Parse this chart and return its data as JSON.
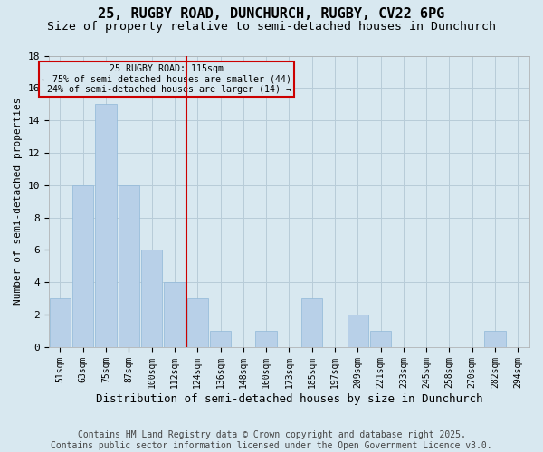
{
  "title1": "25, RUGBY ROAD, DUNCHURCH, RUGBY, CV22 6PG",
  "title2": "Size of property relative to semi-detached houses in Dunchurch",
  "xlabel": "Distribution of semi-detached houses by size in Dunchurch",
  "ylabel": "Number of semi-detached properties",
  "categories": [
    "51sqm",
    "63sqm",
    "75sqm",
    "87sqm",
    "100sqm",
    "112sqm",
    "124sqm",
    "136sqm",
    "148sqm",
    "160sqm",
    "173sqm",
    "185sqm",
    "197sqm",
    "209sqm",
    "221sqm",
    "233sqm",
    "245sqm",
    "258sqm",
    "270sqm",
    "282sqm",
    "294sqm"
  ],
  "values": [
    3,
    10,
    15,
    10,
    6,
    4,
    3,
    1,
    0,
    1,
    0,
    3,
    0,
    2,
    1,
    0,
    0,
    0,
    0,
    1,
    0
  ],
  "bar_color": "#b8d0e8",
  "bar_edge_color": "#90b8d8",
  "vline_x_idx": 5,
  "vline_label": "25 RUGBY ROAD: 115sqm",
  "pct_smaller": "75% of semi-detached houses are smaller (44)",
  "pct_larger": "24% of semi-detached houses are larger (14)",
  "annotation_box_color": "#cc0000",
  "ylim": [
    0,
    18
  ],
  "yticks": [
    0,
    2,
    4,
    6,
    8,
    10,
    12,
    14,
    16,
    18
  ],
  "grid_color": "#b8ccd8",
  "bg_color": "#d8e8f0",
  "footer": "Contains HM Land Registry data © Crown copyright and database right 2025.\nContains public sector information licensed under the Open Government Licence v3.0.",
  "title1_fontsize": 11,
  "title2_fontsize": 9.5,
  "xlabel_fontsize": 9,
  "ylabel_fontsize": 8,
  "footer_fontsize": 7
}
